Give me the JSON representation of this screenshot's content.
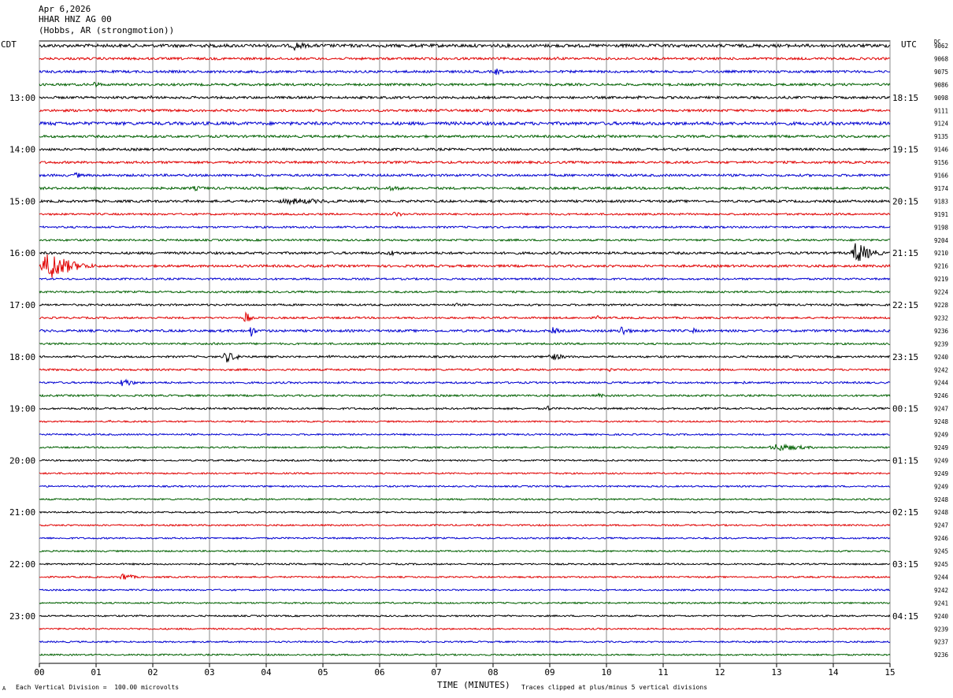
{
  "header": {
    "date": "Apr 6,2026",
    "station": "HHAR HNZ AG 00",
    "location": "(Hobbs, AR (strongmotion))"
  },
  "tz_left": "CDT",
  "tz_right": "UTC",
  "dc_label": "DC",
  "footer": {
    "scale_note": "Each Vertical Division =  100.00 microvolts",
    "xlabel": "TIME (MINUTES)",
    "clip_note": "Traces clipped at plus/minus 5 vertical divisions",
    "corner_mark": "A"
  },
  "colors": {
    "trace_cycle": [
      "#000000",
      "#e00000",
      "#0000d0",
      "#006000"
    ],
    "grid": "#8a8a8a"
  },
  "chart_data": {
    "type": "line",
    "title": "",
    "xlabel": "TIME (MINUTES)",
    "ylabel": "",
    "xlim": [
      0,
      15
    ],
    "x_ticks": [
      "00",
      "01",
      "02",
      "03",
      "04",
      "05",
      "06",
      "07",
      "08",
      "09",
      "10",
      "11",
      "12",
      "13",
      "14",
      "15"
    ],
    "rows_per_hour": 4,
    "row_count": 48,
    "left_time_labels": [
      {
        "row": 4,
        "label": "13:00"
      },
      {
        "row": 8,
        "label": "14:00"
      },
      {
        "row": 12,
        "label": "15:00"
      },
      {
        "row": 16,
        "label": "16:00"
      },
      {
        "row": 20,
        "label": "17:00"
      },
      {
        "row": 24,
        "label": "18:00"
      },
      {
        "row": 28,
        "label": "19:00"
      },
      {
        "row": 32,
        "label": "20:00"
      },
      {
        "row": 36,
        "label": "21:00"
      },
      {
        "row": 40,
        "label": "22:00"
      },
      {
        "row": 44,
        "label": "23:00"
      }
    ],
    "right_time_labels": [
      {
        "row": 4,
        "label": "18:15"
      },
      {
        "row": 8,
        "label": "19:15"
      },
      {
        "row": 12,
        "label": "20:15"
      },
      {
        "row": 16,
        "label": "21:15"
      },
      {
        "row": 20,
        "label": "22:15"
      },
      {
        "row": 24,
        "label": "23:15"
      },
      {
        "row": 28,
        "label": "00:15"
      },
      {
        "row": 32,
        "label": "01:15"
      },
      {
        "row": 36,
        "label": "02:15"
      },
      {
        "row": 40,
        "label": "03:15"
      },
      {
        "row": 44,
        "label": "04:15"
      }
    ],
    "dc_offsets": [
      "9062",
      "9068",
      "9075",
      "9086",
      "9098",
      "9111",
      "9124",
      "9135",
      "9146",
      "9156",
      "9166",
      "9174",
      "9183",
      "9191",
      "9198",
      "9204",
      "9210",
      "9216",
      "9219",
      "9224",
      "9228",
      "9232",
      "9236",
      "9239",
      "9240",
      "9242",
      "9244",
      "9246",
      "9247",
      "9248",
      "9249",
      "9249",
      "9249",
      "9249",
      "9249",
      "9248",
      "9248",
      "9247",
      "9246",
      "9245",
      "9245",
      "9244",
      "9242",
      "9241",
      "9240",
      "9239",
      "9237",
      "9236"
    ],
    "noise_level": [
      2,
      1.5,
      1.5,
      1.5,
      1.5,
      1.5,
      2,
      1.5,
      1.5,
      1.5,
      1.5,
      1.5,
      1.5,
      1.2,
      1.2,
      1.2,
      1.5,
      1.5,
      1.2,
      1.2,
      1.2,
      1.2,
      1.5,
      1.2,
      1.2,
      1.2,
      1.2,
      1.2,
      1.2,
      1,
      1,
      1,
      1,
      1,
      1,
      1,
      1,
      1,
      1,
      1,
      1,
      1,
      1,
      1,
      1,
      1,
      1,
      1
    ],
    "events": [
      {
        "row": 0,
        "minute": 4.4,
        "duration": 0.7,
        "amplitude": 6
      },
      {
        "row": 1,
        "minute": 9.1,
        "duration": 0.3,
        "amplitude": 3
      },
      {
        "row": 2,
        "minute": 8.0,
        "duration": 0.4,
        "amplitude": 5
      },
      {
        "row": 3,
        "minute": 0.9,
        "duration": 0.5,
        "amplitude": 4
      },
      {
        "row": 4,
        "minute": 1.9,
        "duration": 0.4,
        "amplitude": 3
      },
      {
        "row": 4,
        "minute": 10.5,
        "duration": 0.3,
        "amplitude": 3
      },
      {
        "row": 6,
        "minute": 0.2,
        "duration": 0.4,
        "amplitude": 3
      },
      {
        "row": 10,
        "minute": 0.6,
        "duration": 0.3,
        "amplitude": 5
      },
      {
        "row": 11,
        "minute": 2.6,
        "duration": 1.0,
        "amplitude": 3
      },
      {
        "row": 11,
        "minute": 6.0,
        "duration": 1.2,
        "amplitude": 3
      },
      {
        "row": 12,
        "minute": 4.0,
        "duration": 3.0,
        "amplitude": 4
      },
      {
        "row": 13,
        "minute": 6.2,
        "duration": 0.5,
        "amplitude": 4
      },
      {
        "row": 16,
        "minute": 6.1,
        "duration": 0.6,
        "amplitude": 4
      },
      {
        "row": 16,
        "minute": 14.3,
        "duration": 0.7,
        "amplitude": 16
      },
      {
        "row": 17,
        "minute": 0.0,
        "duration": 1.1,
        "amplitude": 20
      },
      {
        "row": 20,
        "minute": 7.3,
        "duration": 0.2,
        "amplitude": 4
      },
      {
        "row": 21,
        "minute": 3.6,
        "duration": 0.2,
        "amplitude": 12
      },
      {
        "row": 21,
        "minute": 9.8,
        "duration": 0.3,
        "amplitude": 3
      },
      {
        "row": 22,
        "minute": 3.7,
        "duration": 0.2,
        "amplitude": 10
      },
      {
        "row": 22,
        "minute": 9.0,
        "duration": 0.4,
        "amplitude": 5
      },
      {
        "row": 22,
        "minute": 10.2,
        "duration": 0.4,
        "amplitude": 8
      },
      {
        "row": 22,
        "minute": 11.5,
        "duration": 0.2,
        "amplitude": 4
      },
      {
        "row": 23,
        "minute": 3.0,
        "duration": 0.4,
        "amplitude": 3
      },
      {
        "row": 24,
        "minute": 3.2,
        "duration": 0.6,
        "amplitude": 8
      },
      {
        "row": 24,
        "minute": 5.0,
        "duration": 0.5,
        "amplitude": 3
      },
      {
        "row": 24,
        "minute": 8.9,
        "duration": 0.8,
        "amplitude": 5
      },
      {
        "row": 25,
        "minute": 10.0,
        "duration": 0.4,
        "amplitude": 3
      },
      {
        "row": 26,
        "minute": 1.4,
        "duration": 0.5,
        "amplitude": 7
      },
      {
        "row": 26,
        "minute": 12.4,
        "duration": 0.1,
        "amplitude": 4
      },
      {
        "row": 27,
        "minute": 6.0,
        "duration": 0.4,
        "amplitude": 3
      },
      {
        "row": 27,
        "minute": 9.8,
        "duration": 0.4,
        "amplitude": 3
      },
      {
        "row": 28,
        "minute": 8.95,
        "duration": 0.1,
        "amplitude": 8
      },
      {
        "row": 29,
        "minute": 1.2,
        "duration": 0.2,
        "amplitude": 3
      },
      {
        "row": 31,
        "minute": 12.8,
        "duration": 1.5,
        "amplitude": 5
      },
      {
        "row": 32,
        "minute": 5.1,
        "duration": 0.2,
        "amplitude": 2
      },
      {
        "row": 37,
        "minute": 14.7,
        "duration": 0.3,
        "amplitude": 2
      },
      {
        "row": 41,
        "minute": 1.4,
        "duration": 0.5,
        "amplitude": 6
      }
    ]
  }
}
